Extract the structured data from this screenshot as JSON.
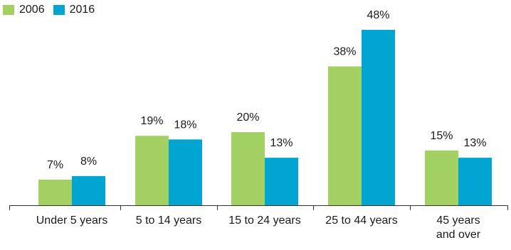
{
  "chart_data": {
    "type": "bar",
    "title": "",
    "xlabel": "",
    "ylabel": "",
    "categories": [
      "Under 5 years",
      "5 to 14 years",
      "15 to 24 years",
      "25 to 44 years",
      "45 years and over"
    ],
    "category_lines": [
      [
        "Under 5 years"
      ],
      [
        "5 to 14 years"
      ],
      [
        "15 to 24 years"
      ],
      [
        "25 to 44 years"
      ],
      [
        "45 years",
        "and over"
      ]
    ],
    "series": [
      {
        "name": "2006",
        "values": [
          7,
          19,
          20,
          38,
          15
        ],
        "labels": [
          "7%",
          "19%",
          "20%",
          "38%",
          "15%"
        ],
        "color": "#a3d063"
      },
      {
        "name": "2016",
        "values": [
          8,
          18,
          13,
          48,
          13
        ],
        "labels": [
          "8%",
          "18%",
          "13%",
          "48%",
          "13%"
        ],
        "color": "#00a5d2"
      }
    ],
    "ylim": [
      0,
      48
    ],
    "grid": false,
    "legend": "top-left"
  }
}
